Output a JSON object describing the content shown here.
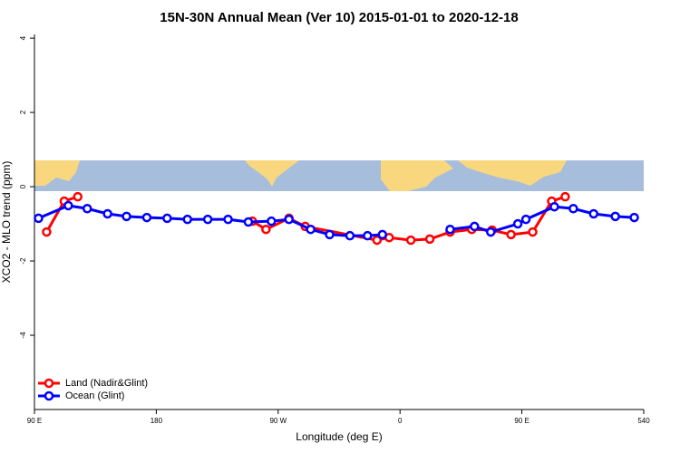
{
  "chart_data": {
    "type": "line",
    "title": "15N-30N Annual Mean (Ver 10)   2015-01-01 to 2020-12-18",
    "x_label": "Longitude (deg E)",
    "y_label": "XCO2 - MLO trend (ppm)",
    "xlim": [
      90,
      540
    ],
    "xticks": [
      {
        "value": 90,
        "label": "90 E"
      },
      180,
      {
        "value": 270,
        "label": "90 W"
      },
      {
        "value": 360,
        "label": "0"
      },
      {
        "value": 450,
        "label": "90 E"
      },
      540
    ],
    "ylim": [
      -6,
      4.1
    ],
    "yticks": [
      -4,
      -2,
      0,
      2,
      4
    ],
    "legend": "bottom-left",
    "series": [
      {
        "name": "Land (Nadir&Glint)",
        "color": "#ff0000",
        "x": [
          99,
          112,
          122,
          null,
          251,
          261,
          278,
          290,
          343,
          352,
          368,
          382,
          397,
          413,
          428,
          442,
          458,
          472,
          482
        ],
        "values": [
          -1.22,
          -0.39,
          -0.27,
          null,
          -0.93,
          -1.15,
          -0.85,
          -1.07,
          -1.44,
          -1.37,
          -1.44,
          -1.41,
          -1.22,
          -1.15,
          -1.17,
          -1.29,
          -1.22,
          -0.39,
          -0.27
        ]
      },
      {
        "name": "Ocean (Glint)",
        "color": "#0000ff",
        "x": [
          93,
          115,
          129,
          144,
          158,
          173,
          188,
          203,
          218,
          233,
          248,
          265,
          278,
          294,
          308,
          323,
          336,
          347,
          null,
          397,
          415,
          427,
          447,
          453,
          474,
          488,
          503,
          519,
          533
        ],
        "values": [
          -0.85,
          -0.51,
          -0.59,
          -0.73,
          -0.8,
          -0.83,
          -0.85,
          -0.88,
          -0.88,
          -0.88,
          -0.95,
          -0.93,
          -0.88,
          -1.15,
          -1.29,
          -1.32,
          -1.32,
          -1.29,
          null,
          -1.15,
          -1.07,
          -1.22,
          -1.0,
          -0.88,
          -0.54,
          -0.59,
          -0.73,
          -0.8,
          -0.83
        ]
      }
    ]
  }
}
